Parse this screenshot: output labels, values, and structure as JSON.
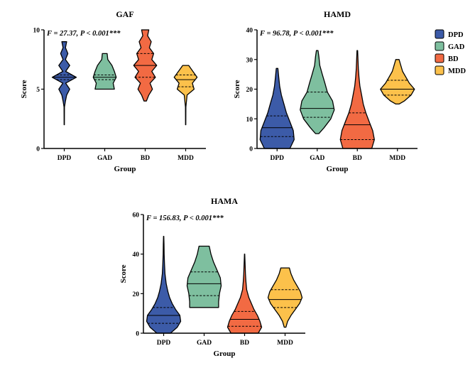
{
  "colors": {
    "DPD": "#3C5BA8",
    "GAD": "#7EBF9F",
    "BD": "#F26A43",
    "MDD": "#FCC14B"
  },
  "legend": {
    "items": [
      {
        "label": "DPD",
        "color": "#3C5BA8"
      },
      {
        "label": "GAD",
        "color": "#7EBF9F"
      },
      {
        "label": "BD",
        "color": "#F26A43"
      },
      {
        "label": "MDD",
        "color": "#FCC14B"
      }
    ]
  },
  "chart_data": [
    {
      "type": "violin",
      "title": "GAF",
      "stat_text": "F = 27.37, P < 0.001***",
      "xlabel": "Group",
      "ylabel": "Score",
      "ylim": [
        0,
        10
      ],
      "yticks": [
        0,
        5,
        10
      ],
      "categories": [
        "DPD",
        "GAD",
        "BD",
        "MDD"
      ],
      "series": [
        {
          "name": "DPD",
          "median": 6,
          "q1": 5.8,
          "q3": 6.2,
          "profile": [
            [
              2,
              0.01
            ],
            [
              3.5,
              0.02
            ],
            [
              4,
              0.1
            ],
            [
              4.5,
              0.2
            ],
            [
              5,
              0.45
            ],
            [
              5.5,
              0.12
            ],
            [
              6,
              1.0
            ],
            [
              6.5,
              0.12
            ],
            [
              7,
              0.45
            ],
            [
              7.5,
              0.1
            ],
            [
              8,
              0.3
            ],
            [
              8.5,
              0.1
            ],
            [
              9,
              0.2
            ]
          ]
        },
        {
          "name": "GAD",
          "median": 6,
          "q1": 5.8,
          "q3": 6.2,
          "profile": [
            [
              5,
              0.8
            ],
            [
              5.5,
              0.7
            ],
            [
              6,
              0.95
            ],
            [
              6.5,
              0.8
            ],
            [
              7,
              0.6
            ],
            [
              7.5,
              0.25
            ],
            [
              8,
              0.2
            ]
          ]
        },
        {
          "name": "BD",
          "median": 7,
          "q1": 6,
          "q3": 8,
          "profile": [
            [
              4,
              0.1
            ],
            [
              4.5,
              0.3
            ],
            [
              5,
              0.6
            ],
            [
              5.5,
              0.4
            ],
            [
              6,
              0.85
            ],
            [
              6.5,
              0.55
            ],
            [
              7,
              0.95
            ],
            [
              7.5,
              0.55
            ],
            [
              8,
              0.7
            ],
            [
              8.5,
              0.35
            ],
            [
              9,
              0.5
            ],
            [
              9.5,
              0.2
            ],
            [
              10,
              0.3
            ]
          ]
        },
        {
          "name": "MDD",
          "median": 5.8,
          "q1": 5.2,
          "q3": 6.2,
          "profile": [
            [
              2,
              0.01
            ],
            [
              3.5,
              0.02
            ],
            [
              4.5,
              0.12
            ],
            [
              5,
              0.7
            ],
            [
              5.5,
              0.55
            ],
            [
              6,
              0.95
            ],
            [
              6.5,
              0.6
            ],
            [
              7,
              0.25
            ]
          ]
        }
      ]
    },
    {
      "type": "violin",
      "title": "HAMD",
      "stat_text": "F = 96.78, P < 0.001***",
      "xlabel": "Group",
      "ylabel": "Score",
      "ylim": [
        0,
        40
      ],
      "yticks": [
        0,
        10,
        20,
        30,
        40
      ],
      "categories": [
        "DPD",
        "GAD",
        "BD",
        "MDD"
      ],
      "series": [
        {
          "name": "DPD",
          "median": 7,
          "q1": 4,
          "q3": 11,
          "profile": [
            [
              0,
              0.75
            ],
            [
              3,
              1.0
            ],
            [
              6,
              0.95
            ],
            [
              9,
              0.75
            ],
            [
              12,
              0.55
            ],
            [
              15,
              0.4
            ],
            [
              18,
              0.25
            ],
            [
              21,
              0.15
            ],
            [
              24,
              0.1
            ],
            [
              27,
              0.05
            ]
          ]
        },
        {
          "name": "GAD",
          "median": 13.5,
          "q1": 10.5,
          "q3": 19,
          "profile": [
            [
              5,
              0.1
            ],
            [
              7,
              0.4
            ],
            [
              10,
              0.8
            ],
            [
              13,
              1.0
            ],
            [
              16,
              0.9
            ],
            [
              19,
              0.6
            ],
            [
              22,
              0.45
            ],
            [
              25,
              0.3
            ],
            [
              28,
              0.15
            ],
            [
              31,
              0.1
            ],
            [
              33,
              0.05
            ]
          ]
        },
        {
          "name": "BD",
          "median": 8,
          "q1": 3,
          "q3": 12,
          "profile": [
            [
              0,
              0.85
            ],
            [
              3,
              1.0
            ],
            [
              6,
              0.9
            ],
            [
              9,
              0.7
            ],
            [
              12,
              0.5
            ],
            [
              15,
              0.35
            ],
            [
              18,
              0.25
            ],
            [
              21,
              0.15
            ],
            [
              24,
              0.1
            ],
            [
              27,
              0.06
            ],
            [
              30,
              0.04
            ],
            [
              33,
              0.02
            ]
          ]
        },
        {
          "name": "MDD",
          "median": 20,
          "q1": 18,
          "q3": 23,
          "profile": [
            [
              15,
              0.1
            ],
            [
              16,
              0.4
            ],
            [
              18,
              0.8
            ],
            [
              20,
              1.0
            ],
            [
              22,
              0.7
            ],
            [
              24,
              0.5
            ],
            [
              26,
              0.3
            ],
            [
              28,
              0.2
            ],
            [
              30,
              0.1
            ]
          ]
        }
      ]
    },
    {
      "type": "violin",
      "title": "HAMA",
      "stat_text": "F = 156.83, P < 0.001***",
      "xlabel": "Group",
      "ylabel": "Score",
      "ylim": [
        0,
        60
      ],
      "yticks": [
        0,
        20,
        40,
        60
      ],
      "categories": [
        "DPD",
        "GAD",
        "BD",
        "MDD"
      ],
      "series": [
        {
          "name": "DPD",
          "median": 9,
          "q1": 5,
          "q3": 13,
          "profile": [
            [
              0,
              0.4
            ],
            [
              3,
              0.8
            ],
            [
              6,
              1.0
            ],
            [
              9,
              0.95
            ],
            [
              12,
              0.7
            ],
            [
              15,
              0.5
            ],
            [
              18,
              0.35
            ],
            [
              21,
              0.25
            ],
            [
              25,
              0.15
            ],
            [
              30,
              0.08
            ],
            [
              35,
              0.05
            ],
            [
              40,
              0.03
            ],
            [
              45,
              0.02
            ],
            [
              49,
              0.01
            ]
          ]
        },
        {
          "name": "GAD",
          "median": 25,
          "q1": 19,
          "q3": 31,
          "profile": [
            [
              13,
              0.85
            ],
            [
              16,
              0.85
            ],
            [
              20,
              0.9
            ],
            [
              24,
              1.0
            ],
            [
              28,
              0.95
            ],
            [
              32,
              0.75
            ],
            [
              36,
              0.55
            ],
            [
              40,
              0.4
            ],
            [
              42,
              0.35
            ],
            [
              44,
              0.3
            ]
          ]
        },
        {
          "name": "BD",
          "median": 7,
          "q1": 3.5,
          "q3": 11,
          "profile": [
            [
              0,
              0.8
            ],
            [
              3,
              1.0
            ],
            [
              6,
              0.9
            ],
            [
              9,
              0.75
            ],
            [
              12,
              0.55
            ],
            [
              15,
              0.4
            ],
            [
              18,
              0.25
            ],
            [
              22,
              0.12
            ],
            [
              26,
              0.08
            ],
            [
              30,
              0.05
            ],
            [
              35,
              0.03
            ],
            [
              40,
              0.01
            ]
          ]
        },
        {
          "name": "MDD",
          "median": 17,
          "q1": 13,
          "q3": 22,
          "profile": [
            [
              3,
              0.05
            ],
            [
              6,
              0.15
            ],
            [
              9,
              0.35
            ],
            [
              12,
              0.6
            ],
            [
              15,
              0.85
            ],
            [
              18,
              1.0
            ],
            [
              21,
              0.9
            ],
            [
              24,
              0.7
            ],
            [
              27,
              0.5
            ],
            [
              30,
              0.35
            ],
            [
              33,
              0.25
            ]
          ]
        }
      ]
    }
  ]
}
